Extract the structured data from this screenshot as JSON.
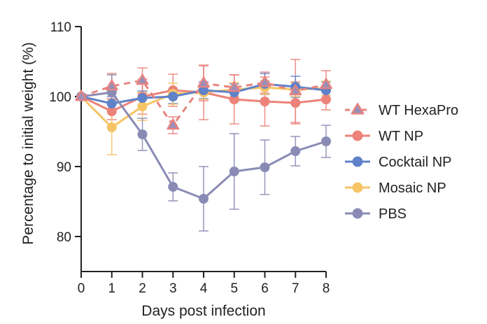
{
  "chart_data": {
    "type": "line",
    "xlabel": "Days post infection",
    "ylabel": "Percentage to initial weight (%)",
    "x": [
      0,
      1,
      2,
      3,
      4,
      5,
      6,
      7,
      8
    ],
    "xlim": [
      0,
      8
    ],
    "ylim": [
      75,
      110
    ],
    "yticks": [
      80,
      90,
      100,
      110
    ],
    "grid": false,
    "legend_position": "right",
    "series": [
      {
        "name": "WT HexaPro",
        "color": "#e8837f",
        "marker": "triangle",
        "line_style": "dashed",
        "values": [
          100,
          101.5,
          102.3,
          95.9,
          101.9,
          101.3,
          102.0,
          100.8,
          101.7
        ],
        "errors": [
          0,
          1.8,
          1.8,
          1.2,
          2.5,
          1.8,
          1.5,
          4.5,
          2.0
        ]
      },
      {
        "name": "WT NP",
        "color": "#ec8279",
        "marker": "circle",
        "line_style": "solid",
        "values": [
          100,
          97.9,
          100.0,
          100.9,
          100.6,
          99.6,
          99.3,
          99.1,
          99.6
        ],
        "errors": [
          0,
          1.2,
          2.5,
          2.3,
          3.9,
          3.5,
          3.5,
          3.0,
          1.5
        ]
      },
      {
        "name": "Cocktail NP",
        "color": "#5f82c9",
        "marker": "circle",
        "line_style": "solid",
        "values": [
          100,
          99.0,
          99.8,
          100.0,
          100.9,
          100.6,
          101.8,
          101.4,
          100.9
        ],
        "errors": [
          0,
          1.0,
          1.0,
          1.0,
          1.2,
          1.2,
          1.5,
          1.5,
          1.2
        ]
      },
      {
        "name": "Mosaic NP",
        "color": "#f6c466",
        "marker": "circle",
        "line_style": "solid",
        "values": [
          100,
          95.6,
          98.6,
          100.4,
          100.6,
          101.0,
          101.3,
          101.0,
          101.2
        ],
        "errors": [
          0,
          3.9,
          2.0,
          1.5,
          1.0,
          1.0,
          1.0,
          1.0,
          1.0
        ]
      },
      {
        "name": "PBS",
        "color": "#8a8bb5",
        "marker": "circle",
        "line_style": "solid",
        "values": [
          100,
          100.6,
          94.6,
          87.1,
          85.4,
          89.3,
          89.9,
          92.2,
          93.6
        ],
        "errors": [
          0,
          2.5,
          2.3,
          2.0,
          4.6,
          5.4,
          3.9,
          2.1,
          2.3
        ]
      }
    ]
  }
}
